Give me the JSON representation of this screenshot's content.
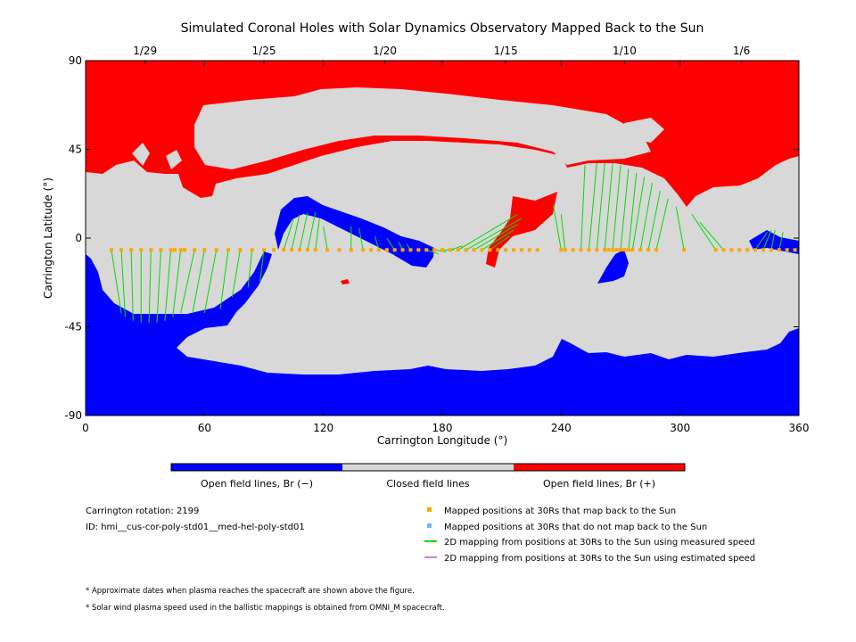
{
  "chart_data": {
    "type": "scatter",
    "title": "Simulated Coronal Holes with Solar Dynamics Observatory Mapped Back to the Sun",
    "xlabel": "Carrington Longitude (°)",
    "ylabel": "Carrington Latitude (°)",
    "xlim": [
      0,
      360
    ],
    "ylim": [
      -90,
      90
    ],
    "x_ticks": [
      0,
      60,
      120,
      180,
      240,
      300,
      360
    ],
    "y_ticks": [
      -90,
      -45,
      0,
      45,
      90
    ],
    "top_axis": {
      "labels": [
        {
          "label": "1/29",
          "lon": 30
        },
        {
          "label": "1/25",
          "lon": 90
        },
        {
          "label": "1/20",
          "lon": 151
        },
        {
          "label": "1/15",
          "lon": 212
        },
        {
          "label": "1/10",
          "lon": 272
        },
        {
          "label": "1/6",
          "lon": 331
        }
      ]
    },
    "color_bar": [
      {
        "label": "Open field lines, Br (−)",
        "color": "#0000ff"
      },
      {
        "label": "Closed field lines",
        "color": "#d8d8d8"
      },
      {
        "label": "Open field lines, Br (+)",
        "color": "#ff0000"
      }
    ],
    "series": [
      {
        "name": "Mapped positions at 30Rs that map back to the Sun",
        "color": "#ffa500",
        "points": [
          [
            13,
            -6
          ],
          [
            18,
            -6
          ],
          [
            23,
            -6
          ],
          [
            28,
            -6
          ],
          [
            33,
            -6
          ],
          [
            38,
            -6
          ],
          [
            43,
            -6
          ],
          [
            45,
            -6
          ],
          [
            48,
            -6
          ],
          [
            50,
            -6
          ],
          [
            55,
            -6
          ],
          [
            60,
            -6
          ],
          [
            66,
            -6
          ],
          [
            72,
            -6
          ],
          [
            78,
            -6
          ],
          [
            84,
            -6
          ],
          [
            90,
            -6
          ],
          [
            95,
            -6
          ],
          [
            100,
            -6
          ],
          [
            104,
            -6
          ],
          [
            108,
            -6
          ],
          [
            112,
            -6
          ],
          [
            116,
            -6
          ],
          [
            122,
            -6
          ],
          [
            128,
            -6
          ],
          [
            134,
            -6
          ],
          [
            140,
            -6
          ],
          [
            144,
            -6
          ],
          [
            148,
            -6
          ],
          [
            152,
            -6
          ],
          [
            156,
            -6
          ],
          [
            160,
            -6
          ],
          [
            164,
            -6
          ],
          [
            168,
            -6
          ],
          [
            172,
            -6
          ],
          [
            176,
            -6
          ],
          [
            180,
            -6
          ],
          [
            184,
            -6
          ],
          [
            188,
            -6
          ],
          [
            192,
            -6
          ],
          [
            196,
            -6
          ],
          [
            200,
            -6
          ],
          [
            204,
            -6
          ],
          [
            208,
            -6
          ],
          [
            212,
            -6
          ],
          [
            216,
            -6
          ],
          [
            220,
            -6
          ],
          [
            224,
            -6
          ],
          [
            228,
            -6
          ],
          [
            240,
            -6
          ],
          [
            242,
            -6
          ],
          [
            246,
            -6
          ],
          [
            250,
            -6
          ],
          [
            254,
            -6
          ],
          [
            258,
            -6
          ],
          [
            262,
            -6
          ],
          [
            264,
            -6
          ],
          [
            266,
            -6
          ],
          [
            268,
            -6
          ],
          [
            270,
            -6
          ],
          [
            272,
            -6
          ],
          [
            274,
            -6
          ],
          [
            276,
            -6
          ],
          [
            280,
            -6
          ],
          [
            284,
            -6
          ],
          [
            288,
            -6
          ],
          [
            302,
            -6
          ],
          [
            318,
            -6
          ],
          [
            322,
            -6
          ],
          [
            326,
            -6
          ],
          [
            330,
            -6
          ],
          [
            334,
            -6
          ],
          [
            338,
            -6
          ],
          [
            342,
            -6
          ],
          [
            346,
            -6
          ],
          [
            350,
            -6
          ],
          [
            354,
            -6
          ],
          [
            358,
            -6
          ]
        ]
      },
      {
        "name": "Mapped positions at 30Rs that do not map back to the Sun",
        "color": "#7ab8ea",
        "points": []
      },
      {
        "name": "2D mapping from positions at 30Rs to the Sun using measured speed",
        "color": "#00dd00",
        "segments": [
          [
            [
              13,
              -6
            ],
            [
              18,
              -38
            ]
          ],
          [
            [
              18,
              -6
            ],
            [
              20,
              -40
            ]
          ],
          [
            [
              23,
              -6
            ],
            [
              24,
              -42
            ]
          ],
          [
            [
              28,
              -6
            ],
            [
              28,
              -43
            ]
          ],
          [
            [
              33,
              -6
            ],
            [
              32,
              -43
            ]
          ],
          [
            [
              38,
              -6
            ],
            [
              36,
              -43
            ]
          ],
          [
            [
              43,
              -6
            ],
            [
              40,
              -42
            ]
          ],
          [
            [
              48,
              -6
            ],
            [
              44,
              -40
            ]
          ],
          [
            [
              55,
              -6
            ],
            [
              48,
              -38
            ]
          ],
          [
            [
              60,
              -6
            ],
            [
              54,
              -38
            ]
          ],
          [
            [
              66,
              -6
            ],
            [
              60,
              -38
            ]
          ],
          [
            [
              72,
              -6
            ],
            [
              68,
              -36
            ]
          ],
          [
            [
              78,
              -6
            ],
            [
              74,
              -30
            ]
          ],
          [
            [
              84,
              -6
            ],
            [
              82,
              -25
            ]
          ],
          [
            [
              90,
              -6
            ],
            [
              88,
              -22
            ]
          ],
          [
            [
              100,
              -6
            ],
            [
              105,
              10
            ]
          ],
          [
            [
              104,
              -6
            ],
            [
              108,
              12
            ]
          ],
          [
            [
              108,
              -6
            ],
            [
              112,
              13
            ]
          ],
          [
            [
              112,
              -6
            ],
            [
              116,
              13
            ]
          ],
          [
            [
              116,
              -6
            ],
            [
              118,
              10
            ]
          ],
          [
            [
              122,
              -6
            ],
            [
              120,
              6
            ]
          ],
          [
            [
              134,
              -6
            ],
            [
              134,
              6
            ]
          ],
          [
            [
              140,
              -6
            ],
            [
              138,
              5
            ]
          ],
          [
            [
              148,
              -6
            ],
            [
              146,
              1
            ]
          ],
          [
            [
              156,
              -6
            ],
            [
              152,
              0
            ]
          ],
          [
            [
              160,
              -6
            ],
            [
              158,
              -2
            ]
          ],
          [
            [
              164,
              -6
            ],
            [
              162,
              -3
            ]
          ],
          [
            [
              172,
              -6
            ],
            [
              178,
              -8
            ]
          ],
          [
            [
              176,
              -6
            ],
            [
              182,
              -7
            ]
          ],
          [
            [
              180,
              -6
            ],
            [
              186,
              -6
            ]
          ],
          [
            [
              184,
              -6
            ],
            [
              190,
              -4
            ]
          ],
          [
            [
              188,
              -6
            ],
            [
              218,
              12
            ]
          ],
          [
            [
              192,
              -6
            ],
            [
              220,
              10
            ]
          ],
          [
            [
              196,
              -6
            ],
            [
              218,
              7
            ]
          ],
          [
            [
              200,
              -6
            ],
            [
              216,
              4
            ]
          ],
          [
            [
              204,
              -6
            ],
            [
              214,
              1
            ]
          ],
          [
            [
              240,
              -6
            ],
            [
              236,
              17
            ]
          ],
          [
            [
              242,
              -6
            ],
            [
              240,
              12
            ]
          ],
          [
            [
              250,
              -6
            ],
            [
              252,
              37
            ]
          ],
          [
            [
              254,
              -6
            ],
            [
              258,
              38
            ]
          ],
          [
            [
              258,
              -6
            ],
            [
              262,
              38
            ]
          ],
          [
            [
              262,
              -6
            ],
            [
              266,
              38
            ]
          ],
          [
            [
              266,
              -6
            ],
            [
              270,
              37
            ]
          ],
          [
            [
              270,
              -6
            ],
            [
              274,
              35
            ]
          ],
          [
            [
              274,
              -6
            ],
            [
              278,
              33
            ]
          ],
          [
            [
              276,
              -6
            ],
            [
              282,
              31
            ]
          ],
          [
            [
              280,
              -6
            ],
            [
              286,
              28
            ]
          ],
          [
            [
              284,
              -6
            ],
            [
              290,
              24
            ]
          ],
          [
            [
              288,
              -6
            ],
            [
              294,
              20
            ]
          ],
          [
            [
              302,
              -6
            ],
            [
              298,
              16
            ]
          ],
          [
            [
              318,
              -6
            ],
            [
              306,
              12
            ]
          ],
          [
            [
              322,
              -6
            ],
            [
              310,
              8
            ]
          ],
          [
            [
              338,
              -6
            ],
            [
              344,
              3
            ]
          ],
          [
            [
              342,
              -6
            ],
            [
              346,
              4
            ]
          ],
          [
            [
              346,
              -6
            ],
            [
              348,
              4
            ]
          ],
          [
            [
              350,
              -6
            ],
            [
              352,
              3
            ]
          ]
        ]
      },
      {
        "name": "2D mapping from positions at 30Rs to the Sun using estimated speed",
        "color": "#bb88ee",
        "segments": []
      }
    ],
    "grid": false
  },
  "info": {
    "rotation": "Carrington rotation: 2199",
    "id": "ID: hmi__cus-cor-poly-std01__med-hel-poly-std01"
  },
  "legend_position": "bottom-right",
  "footnotes": [
    "* Approximate dates when plasma reaches the spacecraft are shown above the figure.",
    "* Solar wind plasma speed used in the ballistic mappings is obtained from OMNI_M spacecraft."
  ],
  "colors": {
    "negative": "#0000ff",
    "closed": "#d8d8d8",
    "positive": "#ff0000"
  }
}
